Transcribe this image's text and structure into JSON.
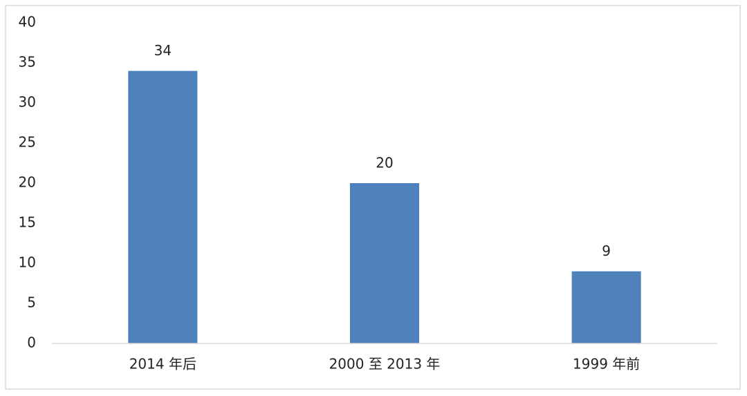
{
  "chart_data": {
    "type": "bar",
    "categories": [
      "2014 年后",
      "2000 至 2013 年",
      "1999 年前"
    ],
    "values": [
      34,
      20,
      9
    ],
    "color": "#4f81bd",
    "ylim": [
      0,
      40
    ],
    "yticks": [
      0,
      5,
      10,
      15,
      20,
      25,
      30,
      35,
      40
    ],
    "grid": false,
    "data_labels": true
  }
}
